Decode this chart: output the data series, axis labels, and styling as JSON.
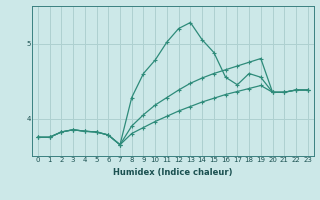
{
  "xlabel": "Humidex (Indice chaleur)",
  "x_values": [
    0,
    1,
    2,
    3,
    4,
    5,
    6,
    7,
    8,
    9,
    10,
    11,
    12,
    13,
    14,
    15,
    16,
    17,
    18,
    19,
    20,
    21,
    22,
    23
  ],
  "line1": [
    3.75,
    3.75,
    3.82,
    3.85,
    3.83,
    3.82,
    3.78,
    3.65,
    4.28,
    4.6,
    4.78,
    5.02,
    5.2,
    5.28,
    5.05,
    4.88,
    4.55,
    4.45,
    4.6,
    4.55,
    4.35,
    4.35,
    4.38,
    4.38
  ],
  "line2": [
    3.75,
    3.75,
    3.82,
    3.85,
    3.83,
    3.82,
    3.78,
    3.65,
    3.9,
    4.05,
    4.18,
    4.28,
    4.38,
    4.47,
    4.54,
    4.6,
    4.65,
    4.7,
    4.75,
    4.8,
    4.35,
    4.35,
    4.38,
    4.38
  ],
  "line3": [
    3.75,
    3.75,
    3.82,
    3.85,
    3.83,
    3.82,
    3.78,
    3.65,
    3.8,
    3.88,
    3.96,
    4.03,
    4.1,
    4.16,
    4.22,
    4.27,
    4.32,
    4.36,
    4.4,
    4.44,
    4.35,
    4.35,
    4.38,
    4.38
  ],
  "color": "#2e8b7a",
  "bg_color": "#cce8e8",
  "grid_color": "#aed0d0",
  "ylim": [
    3.5,
    5.5
  ],
  "yticks": [
    4,
    5
  ],
  "marker": "+",
  "markersize": 3,
  "linewidth": 0.9
}
